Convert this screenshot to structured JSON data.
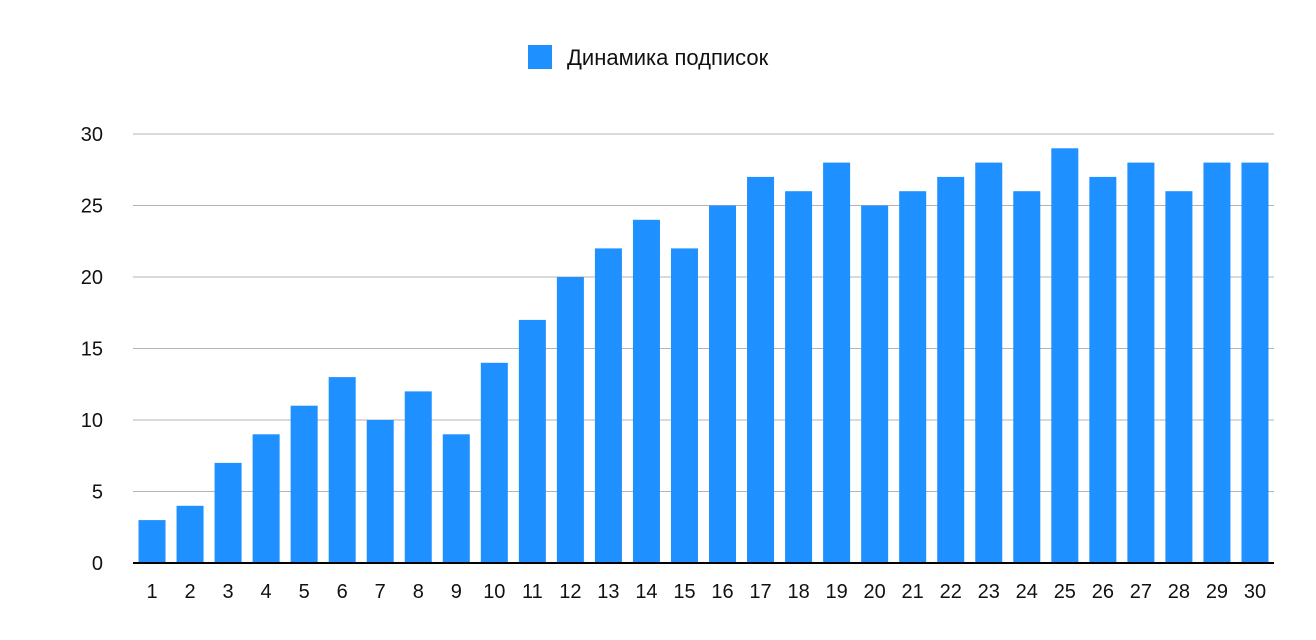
{
  "chart_data": {
    "type": "bar",
    "title": "",
    "xlabel": "",
    "ylabel": "",
    "categories": [
      "1",
      "2",
      "3",
      "4",
      "5",
      "6",
      "7",
      "8",
      "9",
      "10",
      "11",
      "12",
      "13",
      "14",
      "15",
      "16",
      "17",
      "18",
      "19",
      "20",
      "21",
      "22",
      "23",
      "24",
      "25",
      "26",
      "27",
      "28",
      "29",
      "30"
    ],
    "series": [
      {
        "name": "Динамика подписок",
        "color": "#1e90ff",
        "values": [
          3,
          4,
          7,
          9,
          11,
          13,
          10,
          12,
          9,
          14,
          17,
          20,
          22,
          24,
          22,
          25,
          27,
          26,
          28,
          25,
          26,
          27,
          28,
          26,
          29,
          27,
          28,
          26,
          28,
          28
        ]
      }
    ],
    "ylim": [
      0,
      30
    ],
    "yticks": [
      "0",
      "5",
      "10",
      "15",
      "20",
      "25",
      "30"
    ],
    "grid": true,
    "legend_position": "top-center",
    "colors": {
      "gridline": "#b3b3b3",
      "axis": "#000000"
    }
  }
}
